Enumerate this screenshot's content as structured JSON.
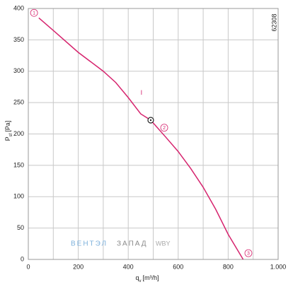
{
  "chart_data": {
    "type": "line",
    "x": [
      42,
      100,
      200,
      300,
      350,
      400,
      450,
      490,
      550,
      600,
      650,
      700,
      750,
      800,
      860
    ],
    "values": [
      385,
      365,
      330,
      300,
      282,
      258,
      232,
      222,
      195,
      172,
      145,
      115,
      80,
      40,
      0
    ],
    "color": "#d6246e",
    "xlim": [
      0,
      1000
    ],
    "ylim": [
      0,
      400
    ],
    "xticks": [
      0,
      200,
      400,
      600,
      800,
      {
        "value": 1000,
        "label": "1.000"
      }
    ],
    "x_minor_grid": [
      100,
      300,
      500,
      700,
      900
    ],
    "yticks": [
      0,
      50,
      100,
      150,
      200,
      250,
      300,
      350,
      400
    ],
    "grid": true,
    "y_label": "P",
    "y_label_sub": "sf",
    "y_label_unit": "[Pa]",
    "x_label": "q",
    "x_label_sub": "v",
    "x_label_unit": "[m³/h]",
    "annotations": [
      {
        "text": "1",
        "x": 23,
        "y": 393,
        "circled": true
      },
      {
        "text": "2",
        "x": 544,
        "y": 210,
        "circled": true
      },
      {
        "text": "3",
        "x": 881,
        "y": 10,
        "circled": true
      },
      {
        "text": "I",
        "x": 453,
        "y": 266,
        "circled": false
      }
    ],
    "operating_point": {
      "x": 490,
      "y": 222
    },
    "code": "62308",
    "watermark": [
      "ВЕНТЭЛ",
      "ЗАПАД",
      "WBY"
    ]
  }
}
